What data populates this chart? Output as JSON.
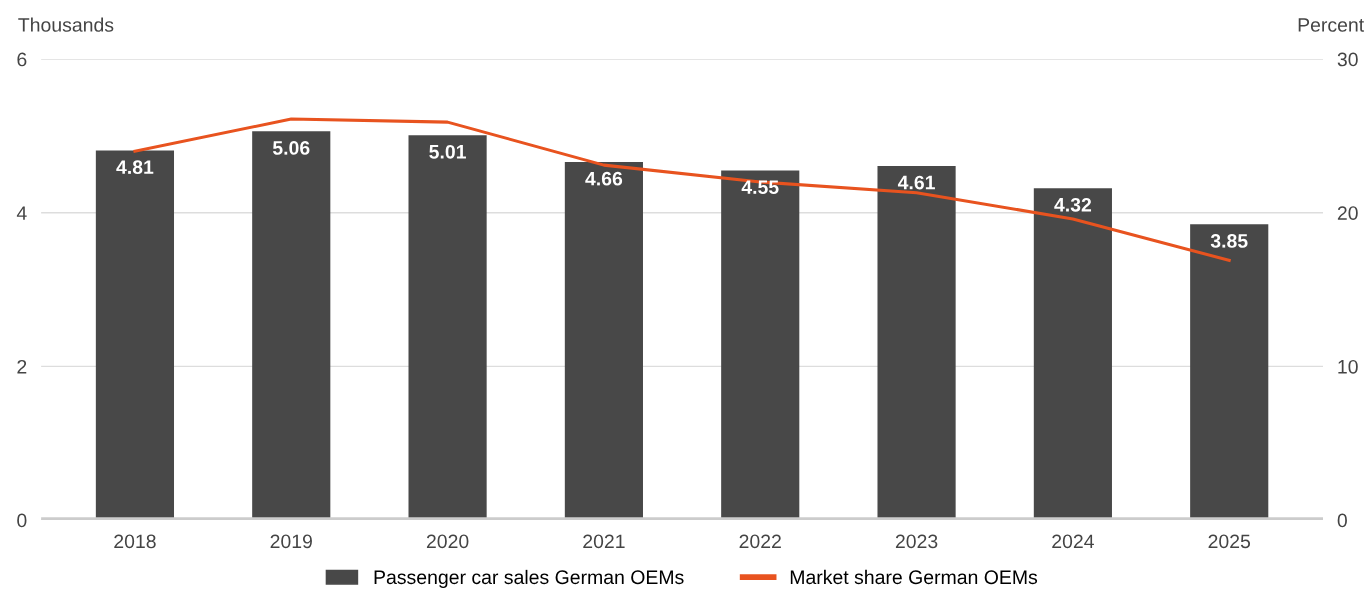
{
  "chart_data": {
    "type": "bar",
    "ylabel": "Thousands",
    "y2label": "Percent",
    "categories": [
      "2018",
      "2019",
      "2020",
      "2021",
      "2022",
      "2023",
      "2024",
      "2025"
    ],
    "series": [
      {
        "name": "Passenger car sales German OEMs",
        "color": "#484848",
        "values": [
          4.81,
          5.06,
          5.01,
          4.66,
          4.55,
          4.61,
          4.32,
          3.85
        ],
        "value_labels": [
          "4.81",
          "5.06",
          "5.01",
          "4.66",
          "4.55",
          "4.61",
          "4.32",
          "3.85"
        ]
      },
      {
        "name": "Market share German OEMs",
        "type": "line",
        "axis": "y2",
        "color": "#e8531f",
        "values": [
          24.0,
          26.1,
          25.9,
          23.1,
          22.0,
          21.3,
          19.6,
          16.9
        ]
      }
    ],
    "ylim": [
      0,
      6
    ],
    "yticks": [
      0,
      2,
      4,
      6
    ],
    "y2lim": [
      0,
      30
    ],
    "y2ticks": [
      0,
      10,
      20,
      30
    ],
    "grid": "y",
    "legend": "bottom",
    "marker": "none",
    "line_style": "solid"
  }
}
